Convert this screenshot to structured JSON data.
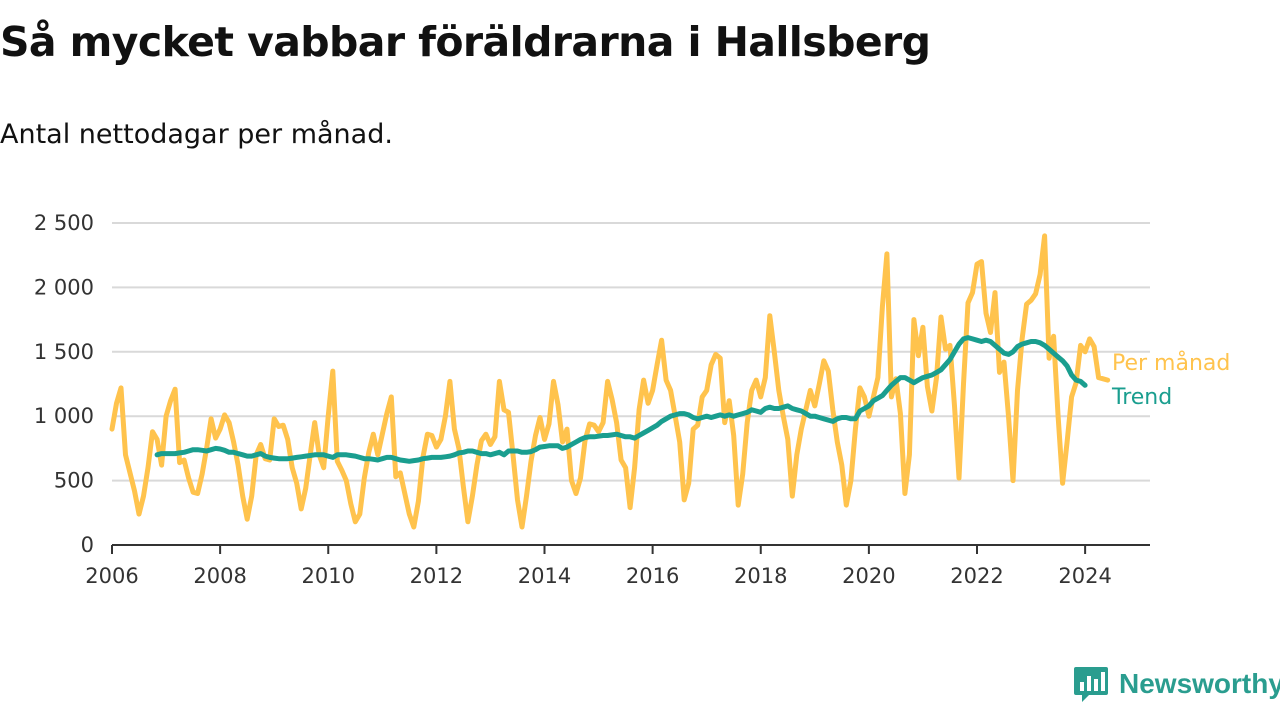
{
  "title": "Så mycket vabbar föräldrarna i Hallsberg",
  "subtitle": "Antal nettodagar per månad.",
  "brand": {
    "name": "Newsworthy",
    "icon": "bar-chart-logo-icon",
    "color": "#2a9d8f"
  },
  "chart_data": {
    "type": "line",
    "title": "Så mycket vabbar föräldrarna i Hallsberg",
    "subtitle": "Antal nettodagar per månad.",
    "xlabel": "",
    "ylabel": "",
    "xlim": [
      2006,
      2025.2
    ],
    "ylim": [
      0,
      2500
    ],
    "x_ticks": [
      2006,
      2008,
      2010,
      2012,
      2014,
      2016,
      2018,
      2020,
      2022,
      2024
    ],
    "y_ticks": [
      0,
      500,
      1000,
      1500,
      2000,
      2500
    ],
    "y_tick_labels": [
      "0",
      "500",
      "1 000",
      "1 500",
      "2 000",
      "2 500"
    ],
    "x_tick_labels": [
      "2006",
      "2008",
      "2010",
      "2012",
      "2014",
      "2016",
      "2018",
      "2020",
      "2022",
      "2024"
    ],
    "grid": true,
    "legend": "line-end labels (right)",
    "series": [
      {
        "name": "Per månad",
        "color": "#ffc34d",
        "start": "2006-01",
        "values": [
          900,
          1100,
          1220,
          700,
          560,
          420,
          240,
          380,
          600,
          880,
          820,
          620,
          1000,
          1120,
          1210,
          640,
          660,
          520,
          410,
          400,
          550,
          750,
          980,
          830,
          900,
          1010,
          950,
          800,
          620,
          380,
          200,
          380,
          700,
          780,
          670,
          660,
          980,
          920,
          930,
          820,
          600,
          480,
          280,
          440,
          700,
          950,
          700,
          600,
          1000,
          1350,
          650,
          580,
          500,
          320,
          180,
          240,
          520,
          720,
          860,
          700,
          860,
          1020,
          1150,
          530,
          560,
          400,
          240,
          140,
          340,
          680,
          860,
          850,
          760,
          820,
          1000,
          1270,
          900,
          750,
          450,
          180,
          380,
          620,
          810,
          860,
          780,
          840,
          1270,
          1050,
          1030,
          700,
          350,
          140,
          380,
          650,
          850,
          990,
          820,
          940,
          1270,
          1090,
          800,
          900,
          500,
          400,
          520,
          810,
          940,
          930,
          880,
          950,
          1270,
          1130,
          950,
          660,
          600,
          290,
          600,
          1050,
          1280,
          1100,
          1200,
          1400,
          1590,
          1280,
          1200,
          1000,
          800,
          350,
          480,
          900,
          930,
          1150,
          1200,
          1400,
          1480,
          1450,
          950,
          1120,
          850,
          310,
          550,
          950,
          1200,
          1280,
          1150,
          1300,
          1780,
          1500,
          1200,
          1000,
          820,
          380,
          700,
          900,
          1050,
          1200,
          1080,
          1250,
          1430,
          1350,
          1050,
          800,
          620,
          310,
          500,
          900,
          1220,
          1150,
          1000,
          1150,
          1300,
          1850,
          2260,
          1150,
          1290,
          1020,
          400,
          700,
          1750,
          1470,
          1690,
          1230,
          1040,
          1300,
          1770,
          1520,
          1550,
          1080,
          520,
          1250,
          1880,
          1960,
          2180,
          2200,
          1800,
          1650,
          1960,
          1340,
          1420,
          1000,
          500,
          1200,
          1600,
          1870,
          1900,
          1950,
          2100,
          2400,
          1450,
          1620,
          1000,
          480,
          800,
          1150,
          1260,
          1550,
          1500,
          1600,
          1540,
          1300,
          1290,
          1280
        ]
      },
      {
        "name": "Trend",
        "color": "#1a9e8f",
        "start": "2006-11",
        "values": [
          700,
          710,
          710,
          710,
          710,
          715,
          720,
          730,
          740,
          740,
          735,
          730,
          740,
          750,
          745,
          735,
          720,
          720,
          710,
          700,
          690,
          690,
          700,
          710,
          690,
          680,
          675,
          670,
          670,
          670,
          675,
          680,
          685,
          690,
          695,
          700,
          700,
          700,
          690,
          680,
          700,
          700,
          700,
          695,
          690,
          680,
          670,
          670,
          665,
          660,
          670,
          680,
          680,
          670,
          660,
          655,
          650,
          655,
          660,
          670,
          675,
          680,
          680,
          680,
          685,
          690,
          700,
          715,
          720,
          730,
          730,
          720,
          710,
          710,
          700,
          710,
          720,
          700,
          730,
          730,
          730,
          720,
          720,
          725,
          740,
          760,
          765,
          770,
          770,
          770,
          750,
          760,
          780,
          800,
          820,
          835,
          840,
          840,
          845,
          850,
          850,
          855,
          860,
          850,
          840,
          840,
          830,
          850,
          870,
          890,
          910,
          930,
          960,
          980,
          1000,
          1010,
          1020,
          1020,
          1010,
          990,
          980,
          990,
          1000,
          990,
          1000,
          1010,
          1000,
          1010,
          1000,
          1010,
          1020,
          1030,
          1050,
          1040,
          1030,
          1060,
          1070,
          1060,
          1060,
          1070,
          1080,
          1060,
          1050,
          1040,
          1020,
          1000,
          1000,
          990,
          980,
          970,
          960,
          980,
          990,
          990,
          980,
          980,
          1040,
          1060,
          1080,
          1120,
          1140,
          1160,
          1200,
          1240,
          1270,
          1300,
          1300,
          1280,
          1260,
          1280,
          1300,
          1310,
          1320,
          1340,
          1360,
          1400,
          1440,
          1500,
          1560,
          1600,
          1610,
          1600,
          1590,
          1580,
          1590,
          1580,
          1550,
          1520,
          1490,
          1480,
          1500,
          1540,
          1560,
          1570,
          1580,
          1580,
          1570,
          1550,
          1520,
          1490,
          1460,
          1430,
          1390,
          1320,
          1280,
          1270,
          1240
        ]
      }
    ]
  }
}
